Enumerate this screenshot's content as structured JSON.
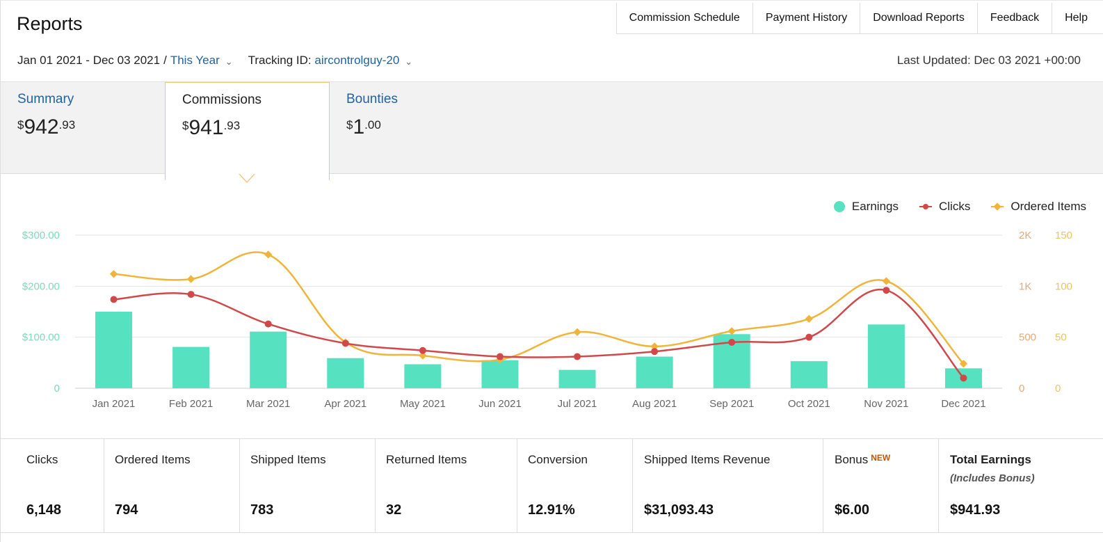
{
  "header": {
    "title": "Reports",
    "nav": [
      "Commission Schedule",
      "Payment History",
      "Download Reports",
      "Feedback",
      "Help"
    ]
  },
  "filters": {
    "date_range": "Jan 01 2021 - Dec 03 2021",
    "separator": "/",
    "period": "This Year",
    "tracking_label": "Tracking ID:",
    "tracking_id": "aircontrolguy-20",
    "last_updated": "Last Updated: Dec 03 2021 +00:00"
  },
  "tabs": [
    {
      "label": "Summary",
      "currency": "$",
      "whole": "942",
      "cents": ".93",
      "active": false
    },
    {
      "label": "Commissions",
      "currency": "$",
      "whole": "941",
      "cents": ".93",
      "active": true
    },
    {
      "label": "Bounties",
      "currency": "$",
      "whole": "1",
      "cents": ".00",
      "active": false
    }
  ],
  "colors": {
    "earnings": "#56e1c1",
    "clicks": "#d0484a",
    "ordered": "#f0b43a",
    "link": "#2162a1",
    "new_badge": "#c45500"
  },
  "legend": {
    "earnings": "Earnings",
    "clicks": "Clicks",
    "ordered": "Ordered Items"
  },
  "chart_data": {
    "type": "bar",
    "categories": [
      "Jan 2021",
      "Feb 2021",
      "Mar 2021",
      "Apr 2021",
      "May 2021",
      "Jun 2021",
      "Jul 2021",
      "Aug 2021",
      "Sep 2021",
      "Oct 2021",
      "Nov 2021",
      "Dec 2021"
    ],
    "series": [
      {
        "name": "Earnings",
        "type": "bar",
        "axis": "left",
        "values": [
          150,
          81,
          111,
          59,
          47,
          55,
          36,
          62,
          106,
          53,
          125,
          39
        ]
      },
      {
        "name": "Clicks",
        "type": "line",
        "axis": "right-clicks",
        "values": [
          870,
          920,
          630,
          440,
          370,
          310,
          310,
          360,
          450,
          500,
          960,
          100
        ]
      },
      {
        "name": "Ordered Items",
        "type": "line",
        "axis": "right-items",
        "values": [
          112,
          107,
          131,
          45,
          32,
          28,
          55,
          41,
          56,
          68,
          105,
          24
        ]
      }
    ],
    "left_axis": {
      "ticks": [
        "$300.00",
        "$200.00",
        "$100.00",
        "0"
      ],
      "ylim": [
        0,
        300
      ]
    },
    "right_axis_clicks": {
      "ticks": [
        "2K",
        "1K",
        "500",
        "0"
      ]
    },
    "right_axis_items": {
      "ticks": [
        "150",
        "100",
        "50",
        "0"
      ],
      "ylim": [
        0,
        150
      ]
    },
    "legend_position": "top-right",
    "grid": true
  },
  "stats": [
    {
      "label": "Clicks",
      "value": "6,148"
    },
    {
      "label": "Ordered Items",
      "value": "794"
    },
    {
      "label": "Shipped Items",
      "value": "783"
    },
    {
      "label": "Returned Items",
      "value": "32"
    },
    {
      "label": "Conversion",
      "value": "12.91%"
    },
    {
      "label": "Shipped Items Revenue",
      "value": "$31,093.43"
    },
    {
      "label": "Bonus",
      "badge": "NEW",
      "value": "$6.00"
    },
    {
      "label": "Total Earnings",
      "sub": "(Includes Bonus)",
      "value": "$941.93"
    }
  ]
}
